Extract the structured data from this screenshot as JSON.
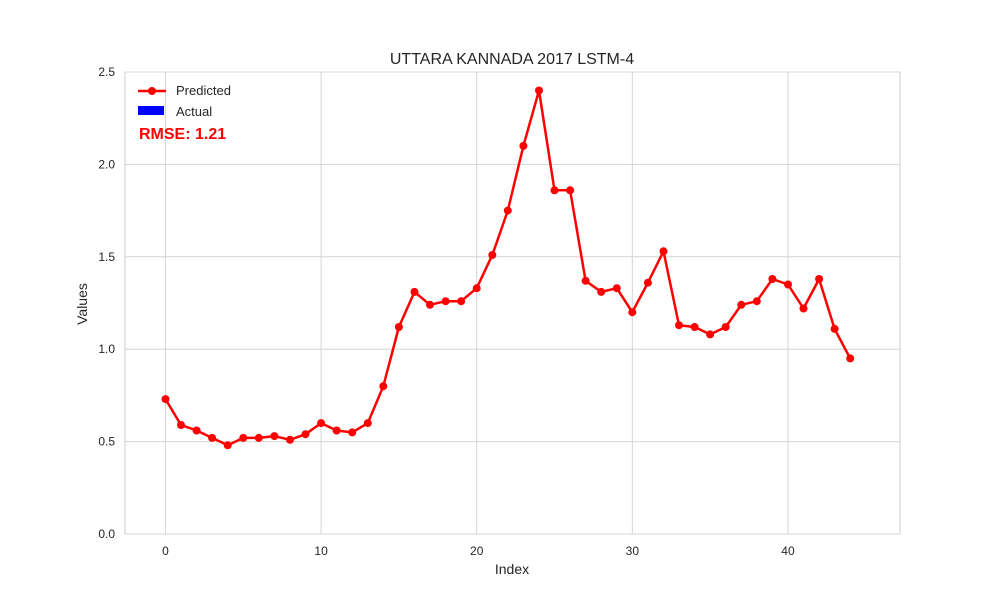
{
  "chart_data": {
    "type": "line",
    "title": "UTTARA KANNADA 2017 LSTM-4",
    "xlabel": "Index",
    "ylabel": "Values",
    "xlim": [
      -2.6,
      47.2
    ],
    "ylim": [
      0,
      2.5
    ],
    "xticks": [
      0,
      10,
      20,
      30,
      40
    ],
    "yticks": [
      0.0,
      0.5,
      1.0,
      1.5,
      2.0,
      2.5
    ],
    "xtick_labels": [
      "0",
      "10",
      "20",
      "30",
      "40"
    ],
    "ytick_labels": [
      "0.0",
      "0.5",
      "1.0",
      "1.5",
      "2.0",
      "2.5"
    ],
    "grid": true,
    "legend_position": "top-left",
    "series": [
      {
        "name": "Predicted",
        "color": "#ff0000",
        "marker": "circle",
        "x": [
          0,
          1,
          2,
          3,
          4,
          5,
          6,
          7,
          8,
          9,
          10,
          11,
          12,
          13,
          14,
          15,
          16,
          17,
          18,
          19,
          20,
          21,
          22,
          23,
          24,
          25,
          26,
          27,
          28,
          29,
          30,
          31,
          32,
          33,
          34,
          35,
          36,
          37,
          38,
          39,
          40,
          41,
          42,
          43,
          44
        ],
        "values": [
          0.73,
          0.59,
          0.56,
          0.52,
          0.48,
          0.52,
          0.52,
          0.53,
          0.51,
          0.54,
          0.6,
          0.56,
          0.55,
          0.6,
          0.8,
          1.12,
          1.31,
          1.24,
          1.26,
          1.26,
          1.33,
          1.51,
          1.75,
          2.1,
          2.4,
          1.86,
          1.86,
          1.37,
          1.31,
          1.33,
          1.2,
          1.36,
          1.53,
          1.13,
          1.12,
          1.08,
          1.12,
          1.24,
          1.26,
          1.38,
          1.35,
          1.22,
          1.38,
          1.11,
          0.95
        ]
      },
      {
        "name": "Actual",
        "color": "#0000ff",
        "values": []
      }
    ],
    "annotation": {
      "text": "RMSE: 1.21",
      "color": "#ff0000"
    }
  }
}
